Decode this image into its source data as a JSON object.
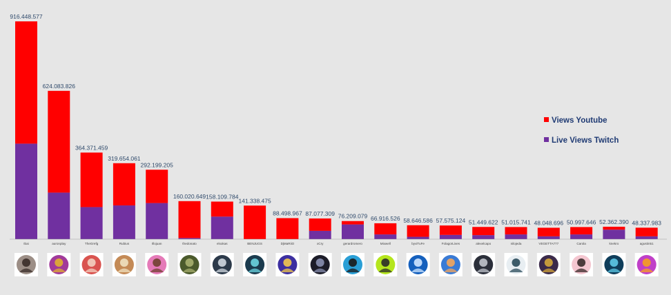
{
  "chart_data": {
    "type": "bar",
    "stacked": true,
    "categories": [
      "Ibai",
      "auronplay",
      "TheGrefg",
      "Rubius",
      "Illojuan",
      "thedonato",
      "elxokas",
      "BENJUGS",
      "DjMaRiiO",
      "xCry",
      "gerardromero",
      "Mixwell",
      "byviTuFe",
      "FolagorLives",
      "alexelcapo",
      "nilojeda",
      "VEGETTA777",
      "Carola",
      "knekro",
      "agustin51"
    ],
    "totals_labels": [
      "916.448.577",
      "624.083.826",
      "364.371.459",
      "319.654.061",
      "292.199.205",
      "160.020.649",
      "158.109.784",
      "141.338.475",
      "88.498.967",
      "87.077.309",
      "76.209.079",
      "66.916.526",
      "58.646.586",
      "57.575.124",
      "51.449.622",
      "51.015.741",
      "48.048.696",
      "50.997.646",
      "52.362.390",
      "48.337.983"
    ],
    "totals": [
      916448577,
      624083826,
      364371459,
      319654061,
      292199205,
      160020649,
      158109784,
      141338475,
      88498967,
      87077309,
      76209079,
      66916526,
      58646586,
      57575124,
      51449622,
      51015741,
      48048696,
      50997646,
      52362390,
      48337983
    ],
    "series": [
      {
        "name": "Live Views Twitch",
        "color": "#7030a0",
        "values": [
          402000000,
          196000000,
          135000000,
          142000000,
          152000000,
          5000000,
          95000000,
          0,
          0,
          35000000,
          62000000,
          20000000,
          10000000,
          18000000,
          17000000,
          20000000,
          12000000,
          20000000,
          40000000,
          12000000
        ]
      },
      {
        "name": "Views Youtube",
        "color": "#ff0000",
        "values": [
          514448577,
          428083826,
          229371459,
          177654061,
          140199205,
          155020649,
          63109784,
          141338475,
          88498967,
          52077309,
          14209079,
          46916526,
          48646586,
          39575124,
          34449622,
          31015741,
          36048696,
          30997646,
          12362390,
          36337983
        ]
      }
    ],
    "legend": [
      {
        "label": "Views Youtube",
        "color": "#ff0000"
      },
      {
        "label": "Live Views Twitch",
        "color": "#7030a0"
      }
    ],
    "legend_position": "right",
    "ylim": [
      0,
      916448577
    ],
    "grid": false,
    "avatars": [
      {
        "icon": "avatar-ibai-icon",
        "bg": "#9c8e86",
        "fg": "#3a2c28"
      },
      {
        "icon": "avatar-auronplay-icon",
        "bg": "#a13a9a",
        "fg": "#e0b030"
      },
      {
        "icon": "avatar-thegrefg-icon",
        "bg": "#d9534f",
        "fg": "#f2d0c0"
      },
      {
        "icon": "avatar-rubius-icon",
        "bg": "#c48a56",
        "fg": "#f0e0c0"
      },
      {
        "icon": "avatar-illojuan-icon",
        "bg": "#e57ab8",
        "fg": "#704030"
      },
      {
        "icon": "avatar-thedonato-icon",
        "bg": "#4b5a2c",
        "fg": "#a8b070"
      },
      {
        "icon": "avatar-elxokas-icon",
        "bg": "#2c3a4a",
        "fg": "#d0d8e0"
      },
      {
        "icon": "avatar-benjugs-icon",
        "bg": "#1b3b4e",
        "fg": "#6bd4e0"
      },
      {
        "icon": "avatar-djmariio-icon",
        "bg": "#3d2fa0",
        "fg": "#f2c94c"
      },
      {
        "icon": "avatar-xcry-icon",
        "bg": "#1c1c28",
        "fg": "#8a90b0"
      },
      {
        "icon": "avatar-gerardromero-icon",
        "bg": "#2a9fd6",
        "fg": "#1a1a1a"
      },
      {
        "icon": "avatar-mixwell-icon",
        "bg": "#b5e61d",
        "fg": "#2a2a2a"
      },
      {
        "icon": "avatar-byvitufe-icon",
        "bg": "#1560bd",
        "fg": "#cfe6ff"
      },
      {
        "icon": "avatar-folagorlives-icon",
        "bg": "#3a7bd5",
        "fg": "#f5a65b"
      },
      {
        "icon": "avatar-alexelcapo-icon",
        "bg": "#2b2f3a",
        "fg": "#c0c4cc"
      },
      {
        "icon": "avatar-nilojeda-icon",
        "bg": "#e8eef2",
        "fg": "#2a4a5a"
      },
      {
        "icon": "avatar-vegetta777-icon",
        "bg": "#3b2a4a",
        "fg": "#d4a63a"
      },
      {
        "icon": "avatar-carola-icon",
        "bg": "#f4c6d0",
        "fg": "#3a2a2a"
      },
      {
        "icon": "avatar-knekro-icon",
        "bg": "#0f3d5a",
        "fg": "#5ec8e6"
      },
      {
        "icon": "avatar-agustin51-icon",
        "bg": "#c040c8",
        "fg": "#f5a020"
      }
    ]
  }
}
